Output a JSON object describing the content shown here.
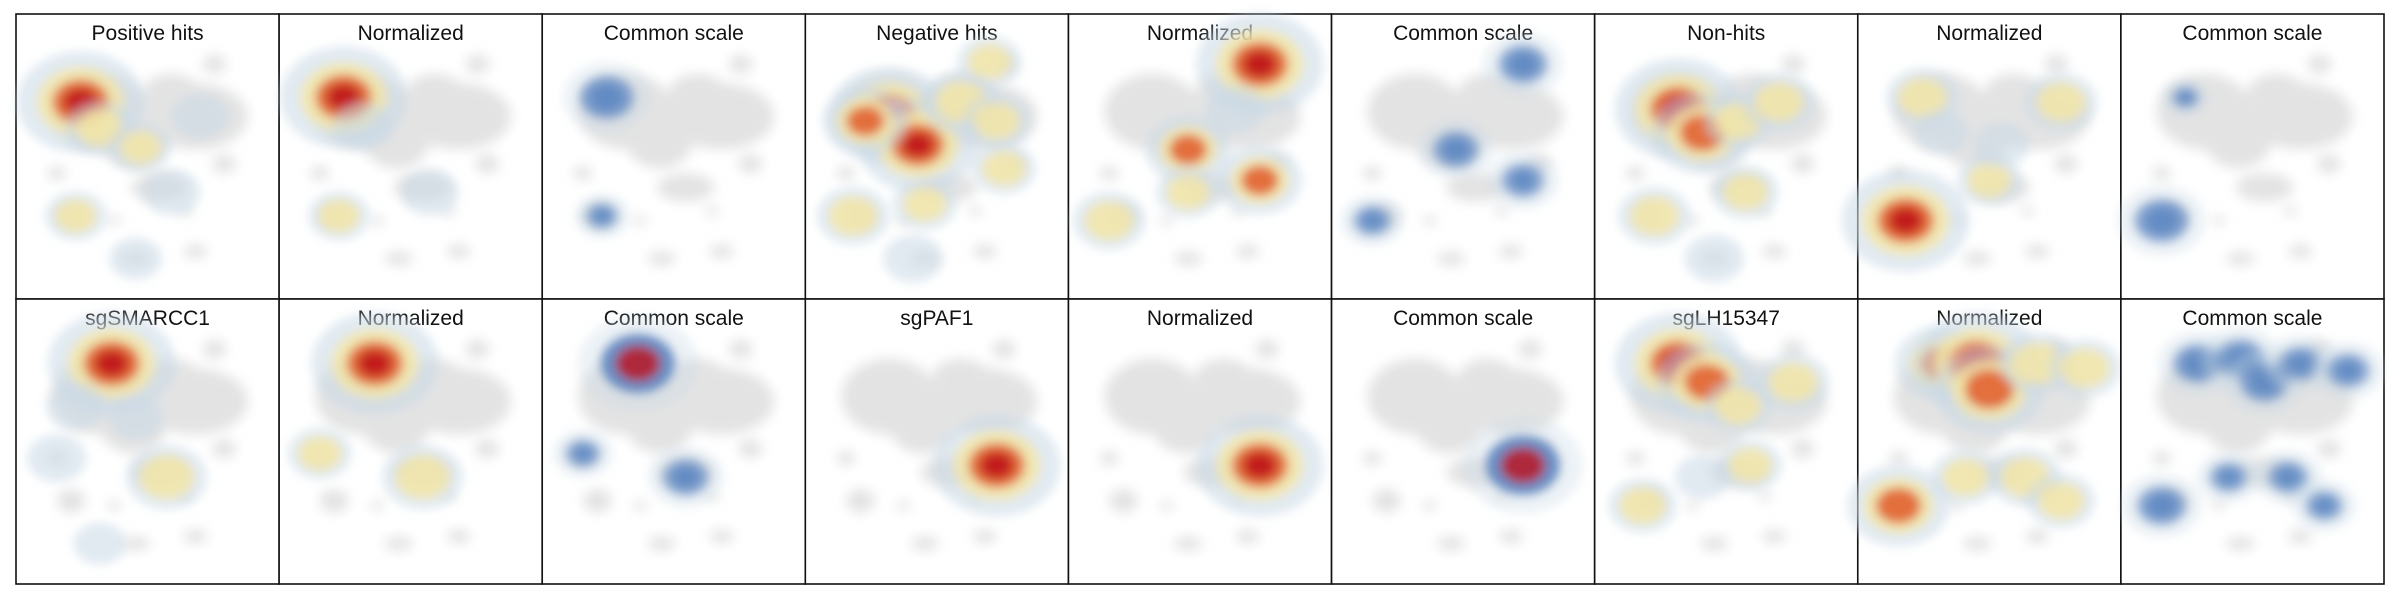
{
  "chart_data": {
    "type": "heatmap",
    "grid": {
      "rows": 2,
      "cols": 9
    },
    "panels": [
      {
        "title": "Positive hits",
        "mode": "raw",
        "hotspots": [
          {
            "x": 0.22,
            "y": 0.22,
            "v": 1.0
          },
          {
            "x": 0.3,
            "y": 0.33,
            "v": 0.3
          },
          {
            "x": 0.47,
            "y": 0.41,
            "v": 0.22
          },
          {
            "x": 0.72,
            "y": 0.28,
            "v": 0.18
          },
          {
            "x": 0.2,
            "y": 0.7,
            "v": 0.22
          },
          {
            "x": 0.6,
            "y": 0.6,
            "v": 0.18
          },
          {
            "x": 0.45,
            "y": 0.88,
            "v": 0.12
          }
        ]
      },
      {
        "title": "Normalized",
        "mode": "norm",
        "hotspots": [
          {
            "x": 0.22,
            "y": 0.2,
            "v": 1.0
          },
          {
            "x": 0.3,
            "y": 0.32,
            "v": 0.2
          },
          {
            "x": 0.2,
            "y": 0.7,
            "v": 0.22
          },
          {
            "x": 0.58,
            "y": 0.6,
            "v": 0.18
          }
        ]
      },
      {
        "title": "Common scale",
        "mode": "common",
        "hotspots": [
          {
            "x": 0.22,
            "y": 0.2,
            "v": 0.6
          },
          {
            "x": 0.2,
            "y": 0.7,
            "v": 0.2
          }
        ]
      },
      {
        "title": "Negative hits",
        "mode": "raw",
        "hotspots": [
          {
            "x": 0.3,
            "y": 0.28,
            "v": 0.95
          },
          {
            "x": 0.42,
            "y": 0.4,
            "v": 0.9
          },
          {
            "x": 0.2,
            "y": 0.3,
            "v": 0.5
          },
          {
            "x": 0.6,
            "y": 0.22,
            "v": 0.4
          },
          {
            "x": 0.75,
            "y": 0.3,
            "v": 0.3
          },
          {
            "x": 0.72,
            "y": 0.05,
            "v": 0.25
          },
          {
            "x": 0.78,
            "y": 0.5,
            "v": 0.25
          },
          {
            "x": 0.15,
            "y": 0.7,
            "v": 0.35
          },
          {
            "x": 0.45,
            "y": 0.65,
            "v": 0.25
          },
          {
            "x": 0.4,
            "y": 0.88,
            "v": 0.2
          }
        ]
      },
      {
        "title": "Normalized",
        "mode": "norm",
        "hotspots": [
          {
            "x": 0.75,
            "y": 0.06,
            "v": 1.0
          },
          {
            "x": 0.45,
            "y": 0.42,
            "v": 0.5
          },
          {
            "x": 0.75,
            "y": 0.55,
            "v": 0.5
          },
          {
            "x": 0.12,
            "y": 0.72,
            "v": 0.35
          },
          {
            "x": 0.45,
            "y": 0.6,
            "v": 0.25
          },
          {
            "x": 0.65,
            "y": 0.25,
            "v": 0.2
          }
        ]
      },
      {
        "title": "Common scale",
        "mode": "common",
        "hotspots": [
          {
            "x": 0.75,
            "y": 0.06,
            "v": 0.5
          },
          {
            "x": 0.47,
            "y": 0.42,
            "v": 0.45
          },
          {
            "x": 0.75,
            "y": 0.55,
            "v": 0.4
          },
          {
            "x": 0.12,
            "y": 0.72,
            "v": 0.3
          }
        ]
      },
      {
        "title": "Non-hits",
        "mode": "raw",
        "hotspots": [
          {
            "x": 0.3,
            "y": 0.25,
            "v": 1.0
          },
          {
            "x": 0.4,
            "y": 0.35,
            "v": 0.7
          },
          {
            "x": 0.55,
            "y": 0.3,
            "v": 0.3
          },
          {
            "x": 0.72,
            "y": 0.22,
            "v": 0.35
          },
          {
            "x": 0.2,
            "y": 0.7,
            "v": 0.35
          },
          {
            "x": 0.58,
            "y": 0.6,
            "v": 0.28
          },
          {
            "x": 0.45,
            "y": 0.88,
            "v": 0.2
          }
        ]
      },
      {
        "title": "Normalized",
        "mode": "norm",
        "hotspots": [
          {
            "x": 0.15,
            "y": 0.72,
            "v": 1.0
          },
          {
            "x": 0.22,
            "y": 0.2,
            "v": 0.35
          },
          {
            "x": 0.8,
            "y": 0.22,
            "v": 0.35
          },
          {
            "x": 0.5,
            "y": 0.55,
            "v": 0.25
          },
          {
            "x": 0.55,
            "y": 0.4,
            "v": 0.15
          },
          {
            "x": 0.3,
            "y": 0.35,
            "v": 0.15
          }
        ]
      },
      {
        "title": "Common scale",
        "mode": "common",
        "hotspots": [
          {
            "x": 0.12,
            "y": 0.72,
            "v": 0.6
          },
          {
            "x": 0.22,
            "y": 0.2,
            "v": 0.1
          }
        ]
      },
      {
        "title": "sgSMARCC1",
        "mode": "raw",
        "hotspots": [
          {
            "x": 0.35,
            "y": 0.12,
            "v": 1.0
          },
          {
            "x": 0.58,
            "y": 0.6,
            "v": 0.45
          },
          {
            "x": 0.2,
            "y": 0.3,
            "v": 0.2
          },
          {
            "x": 0.45,
            "y": 0.35,
            "v": 0.15
          },
          {
            "x": 0.12,
            "y": 0.52,
            "v": 0.2
          },
          {
            "x": 0.3,
            "y": 0.88,
            "v": 0.12
          }
        ]
      },
      {
        "title": "Normalized",
        "mode": "norm",
        "hotspots": [
          {
            "x": 0.35,
            "y": 0.12,
            "v": 1.0
          },
          {
            "x": 0.55,
            "y": 0.6,
            "v": 0.45
          },
          {
            "x": 0.12,
            "y": 0.5,
            "v": 0.25
          }
        ]
      },
      {
        "title": "Common scale",
        "mode": "common",
        "hotspots": [
          {
            "x": 0.35,
            "y": 0.12,
            "v": 1.0
          },
          {
            "x": 0.55,
            "y": 0.6,
            "v": 0.45
          },
          {
            "x": 0.12,
            "y": 0.5,
            "v": 0.25
          }
        ]
      },
      {
        "title": "sgPAF1",
        "mode": "raw",
        "hotspots": [
          {
            "x": 0.75,
            "y": 0.55,
            "v": 1.0
          }
        ]
      },
      {
        "title": "Normalized",
        "mode": "norm",
        "hotspots": [
          {
            "x": 0.75,
            "y": 0.55,
            "v": 1.0
          }
        ]
      },
      {
        "title": "Common scale",
        "mode": "common",
        "hotspots": [
          {
            "x": 0.75,
            "y": 0.55,
            "v": 1.0
          }
        ]
      },
      {
        "title": "sgLH15347",
        "mode": "raw",
        "hotspots": [
          {
            "x": 0.3,
            "y": 0.12,
            "v": 1.0
          },
          {
            "x": 0.42,
            "y": 0.2,
            "v": 0.7
          },
          {
            "x": 0.78,
            "y": 0.2,
            "v": 0.35
          },
          {
            "x": 0.55,
            "y": 0.3,
            "v": 0.3
          },
          {
            "x": 0.15,
            "y": 0.72,
            "v": 0.3
          },
          {
            "x": 0.6,
            "y": 0.55,
            "v": 0.25
          },
          {
            "x": 0.4,
            "y": 0.6,
            "v": 0.15
          }
        ]
      },
      {
        "title": "Normalized",
        "mode": "norm",
        "hotspots": [
          {
            "x": 0.3,
            "y": 0.12,
            "v": 0.6
          },
          {
            "x": 0.45,
            "y": 0.12,
            "v": 1.0
          },
          {
            "x": 0.5,
            "y": 0.23,
            "v": 0.8
          },
          {
            "x": 0.7,
            "y": 0.12,
            "v": 0.4
          },
          {
            "x": 0.9,
            "y": 0.14,
            "v": 0.35
          },
          {
            "x": 0.12,
            "y": 0.72,
            "v": 0.7
          },
          {
            "x": 0.4,
            "y": 0.6,
            "v": 0.3
          },
          {
            "x": 0.65,
            "y": 0.6,
            "v": 0.35
          },
          {
            "x": 0.8,
            "y": 0.7,
            "v": 0.3
          }
        ]
      },
      {
        "title": "Common scale",
        "mode": "common",
        "hotspots": [
          {
            "x": 0.27,
            "y": 0.12,
            "v": 0.5
          },
          {
            "x": 0.45,
            "y": 0.1,
            "v": 0.5
          },
          {
            "x": 0.55,
            "y": 0.2,
            "v": 0.5
          },
          {
            "x": 0.7,
            "y": 0.12,
            "v": 0.4
          },
          {
            "x": 0.9,
            "y": 0.15,
            "v": 0.4
          },
          {
            "x": 0.12,
            "y": 0.72,
            "v": 0.5
          },
          {
            "x": 0.4,
            "y": 0.6,
            "v": 0.3
          },
          {
            "x": 0.65,
            "y": 0.6,
            "v": 0.35
          },
          {
            "x": 0.8,
            "y": 0.72,
            "v": 0.3
          }
        ]
      }
    ],
    "colors": {
      "background_map": "#e3e3e3",
      "low": "#c9d9e6",
      "mid": "#f5e6a3",
      "high": "#e15a2a",
      "peak": "#c0121b",
      "common": "#5b86c0",
      "frame": "#111111"
    }
  }
}
